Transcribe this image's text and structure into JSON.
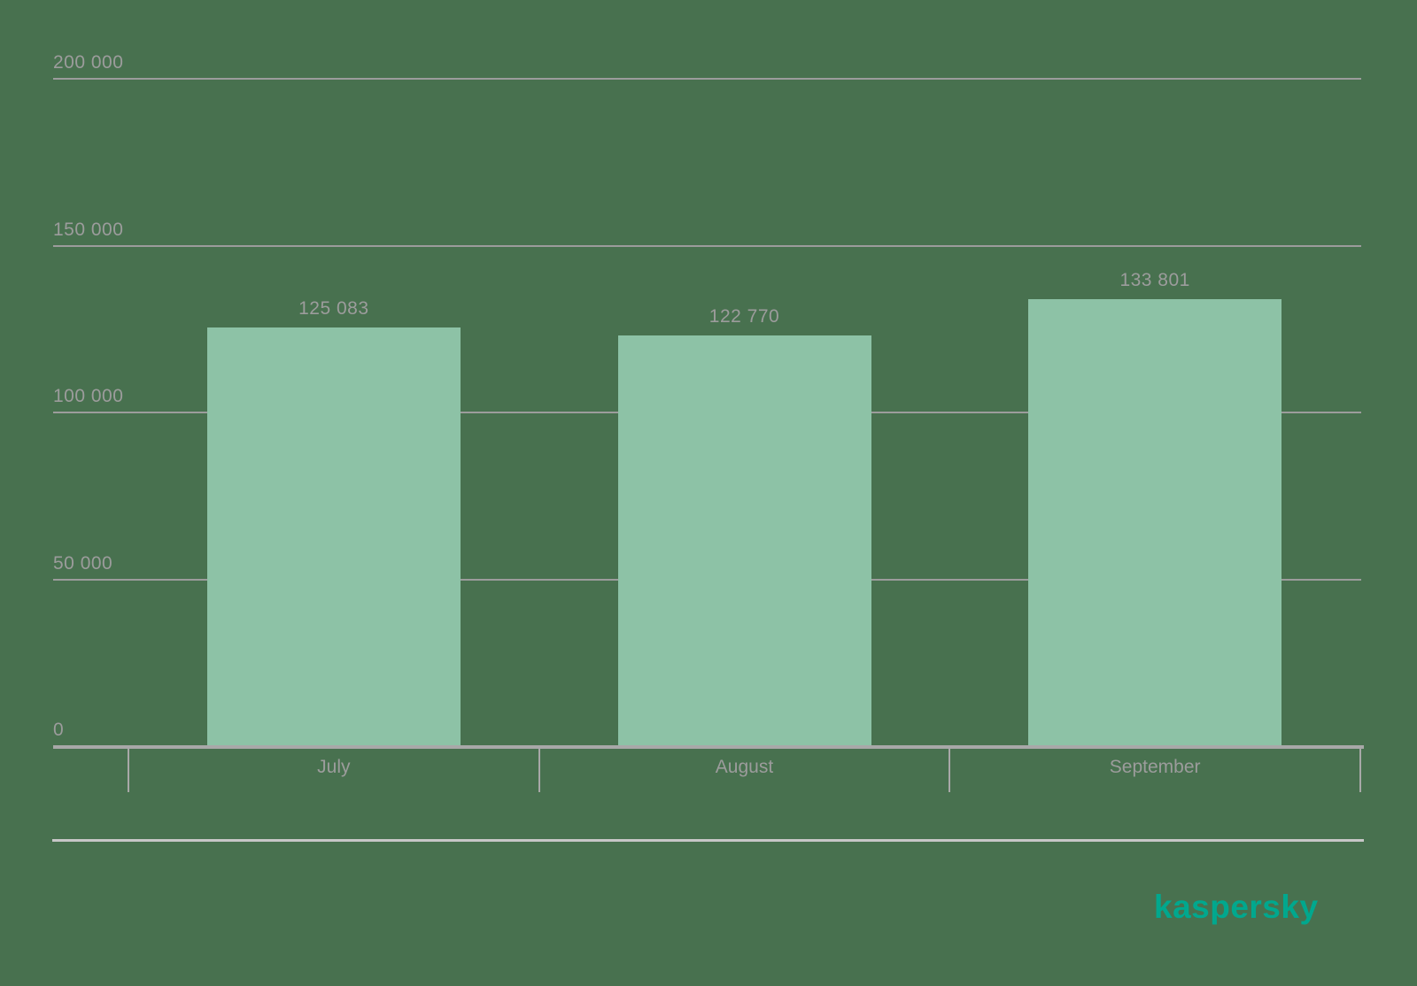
{
  "background_color": "#48714F",
  "chart_data": {
    "type": "bar",
    "categories": [
      "July",
      "August",
      "September"
    ],
    "values": [
      125083,
      122770,
      133801
    ],
    "value_labels": [
      "125 083",
      "122 770",
      "133 801"
    ],
    "yticks": [
      0,
      50000,
      100000,
      150000,
      200000
    ],
    "ytick_labels": [
      "0",
      "50 000",
      "100 000",
      "150 000",
      "200 000"
    ],
    "ylim": [
      0,
      200000
    ],
    "title": "",
    "xlabel": "",
    "ylabel": "",
    "grid": true,
    "legend_position": "none",
    "bar_color": "#8DC2A6",
    "grid_color": "#9C9C9C",
    "axis_color": "#A8A8A8",
    "text_color": "#9C9C9C"
  },
  "footer": {
    "logo_text": "kaspersky",
    "logo_color": "#00A88E",
    "divider_color": "#C7C7C7"
  }
}
